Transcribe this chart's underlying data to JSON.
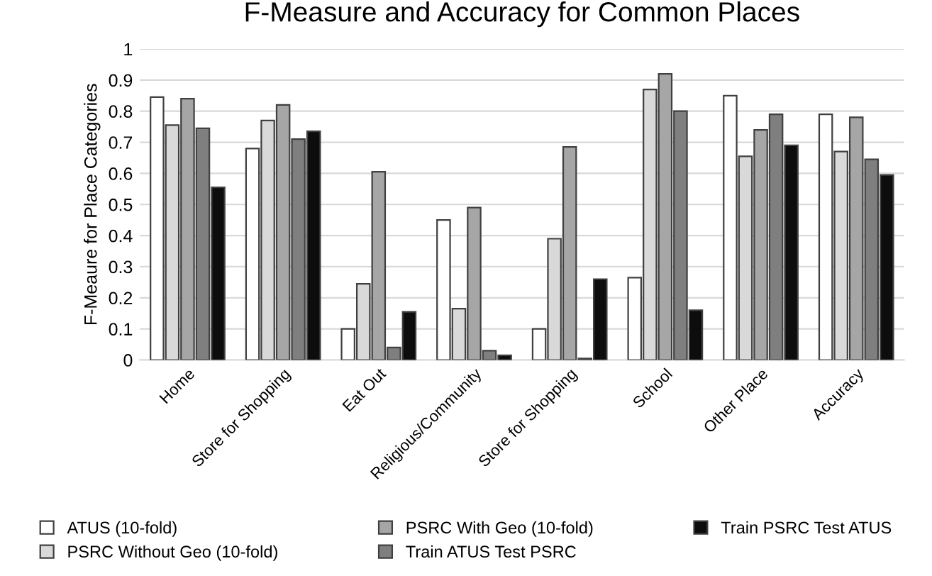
{
  "chart_data": {
    "type": "bar",
    "title": "F-Measure and Accuracy for Common Places",
    "ylabel": "F-Meaure for Place Categories",
    "categories": [
      "Home",
      "Store for Shopping",
      "Eat Out",
      "Religious/Community",
      "Store for Shopping",
      "School",
      "Other Place",
      "Accuracy"
    ],
    "series": [
      {
        "name": "ATUS (10-fold)",
        "color": "#ffffff",
        "values": [
          0.845,
          0.68,
          0.1,
          0.45,
          0.1,
          0.265,
          0.85,
          0.79
        ]
      },
      {
        "name": "PSRC Without Geo (10-fold)",
        "color": "#d9d9d9",
        "values": [
          0.755,
          0.77,
          0.245,
          0.165,
          0.39,
          0.87,
          0.655,
          0.67
        ]
      },
      {
        "name": "PSRC With Geo (10-fold)",
        "color": "#a6a6a6",
        "values": [
          0.84,
          0.82,
          0.605,
          0.49,
          0.685,
          0.92,
          0.74,
          0.78
        ]
      },
      {
        "name": "Train ATUS Test PSRC",
        "color": "#7f7f7f",
        "values": [
          0.745,
          0.71,
          0.04,
          0.03,
          0.005,
          0.8,
          0.79,
          0.645
        ]
      },
      {
        "name": "Train PSRC Test ATUS",
        "color": "#0d0d0d",
        "values": [
          0.555,
          0.735,
          0.155,
          0.015,
          0.26,
          0.16,
          0.69,
          0.595
        ]
      }
    ],
    "ylim": [
      0,
      1
    ],
    "yticks": [
      0,
      0.1,
      0.2,
      0.3,
      0.4,
      0.5,
      0.6,
      0.7,
      0.8,
      0.9,
      1
    ],
    "grid": "y",
    "legend": "bottom"
  }
}
